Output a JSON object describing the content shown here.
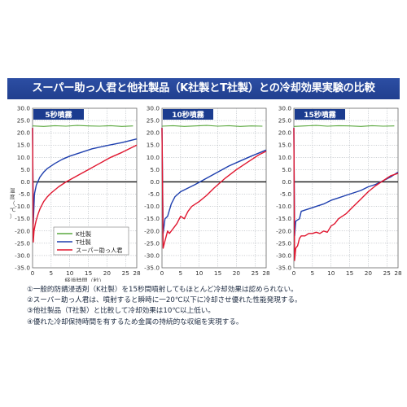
{
  "title": "スーパー助っ人君と他社製品（K社製とT社製）との冷却効果実験の比較",
  "axes": {
    "ylabel": "温度（℃）",
    "xlabel": "経過時間（秒）",
    "y_ticks": [
      "30.0",
      "25.0",
      "20.0",
      "15.0",
      "10.0",
      "5.0",
      "0.0",
      "-5.0",
      "-10.0",
      "-15.0",
      "-20.0",
      "-25.0",
      "-30.0",
      "-35.0"
    ],
    "x_ticks": [
      "0",
      "5",
      "10",
      "15",
      "20",
      "25",
      "28"
    ]
  },
  "legend": {
    "k": "K社製",
    "t": "T社製",
    "s": "スーパー助っ人君"
  },
  "colors": {
    "k": "#5aa83e",
    "t": "#1e3fae",
    "s": "#e0162f",
    "tab": "#1b3c8f",
    "zero": "#111111"
  },
  "chart_data": [
    {
      "type": "line",
      "title": "5秒噴霧",
      "ylim": [
        -35,
        30
      ],
      "xlim": [
        0,
        28
      ],
      "series": [
        {
          "key": "k",
          "name": "K社製",
          "x": [
            0,
            3,
            6,
            9,
            12,
            15,
            18,
            21,
            24,
            27
          ],
          "y": [
            22.8,
            22.6,
            22.9,
            22.7,
            23.0,
            22.8,
            22.7,
            22.9,
            22.6,
            22.8
          ]
        },
        {
          "key": "t",
          "name": "T社製",
          "x": [
            0,
            0.2,
            0.5,
            1,
            2,
            3,
            4,
            6,
            8,
            10,
            13,
            16,
            20,
            24,
            28
          ],
          "y": [
            22,
            -17,
            -5,
            -1.3,
            2,
            4,
            5.5,
            7.5,
            9.2,
            10.5,
            12,
            13.5,
            14.8,
            16,
            17.5
          ]
        },
        {
          "key": "s",
          "name": "スーパー助っ人君",
          "x": [
            0,
            0.2,
            0.4,
            0.7,
            1,
            1.5,
            2,
            3,
            4,
            5,
            7,
            9,
            12,
            15,
            18,
            21,
            24,
            28
          ],
          "y": [
            22,
            -24.5,
            -20,
            -17.5,
            -15.5,
            -13,
            -11,
            -8,
            -6,
            -4.5,
            -2,
            0,
            2.5,
            5,
            7.5,
            10,
            12,
            15
          ]
        }
      ]
    },
    {
      "type": "line",
      "title": "10秒噴霧",
      "ylim": [
        -35,
        30
      ],
      "xlim": [
        0,
        28
      ],
      "series": [
        {
          "key": "k",
          "name": "K社製",
          "x": [
            0,
            3,
            6,
            9,
            12,
            15,
            18,
            21,
            24,
            27
          ],
          "y": [
            22.7,
            22.9,
            22.6,
            22.8,
            23.0,
            22.7,
            22.9,
            22.6,
            22.8,
            22.7
          ]
        },
        {
          "key": "t",
          "name": "T社製",
          "x": [
            0,
            0.3,
            0.8,
            1.5,
            2.5,
            3.5,
            5,
            7,
            9,
            12,
            15,
            18,
            21,
            24,
            28
          ],
          "y": [
            22,
            -21,
            -15,
            -14,
            -9,
            -6,
            -4,
            -2.5,
            -1,
            1.5,
            4,
            6.5,
            8.5,
            10.5,
            13
          ]
        },
        {
          "key": "s",
          "name": "スーパー助っ人君",
          "x": [
            0,
            0.3,
            0.8,
            1.5,
            2,
            3,
            4,
            5,
            6,
            7,
            8,
            10,
            12,
            14,
            17,
            20,
            23,
            26,
            28
          ],
          "y": [
            22,
            -27,
            -24,
            -20,
            -21,
            -19,
            -17,
            -14,
            -15,
            -12,
            -10,
            -8,
            -5.5,
            -2.5,
            1.5,
            5,
            8,
            11,
            12.5
          ]
        }
      ]
    },
    {
      "type": "line",
      "title": "15秒噴霧",
      "ylim": [
        -35,
        30
      ],
      "xlim": [
        0,
        28
      ],
      "series": [
        {
          "key": "k",
          "name": "K社製",
          "x": [
            0,
            3,
            6,
            9,
            12,
            15,
            18,
            21,
            24,
            27
          ],
          "y": [
            22.6,
            22.8,
            23.0,
            22.7,
            22.9,
            22.8,
            22.6,
            22.9,
            22.7,
            22.8
          ]
        },
        {
          "key": "t",
          "name": "T社製",
          "x": [
            0,
            0.2,
            0.5,
            1,
            1.5,
            2,
            3,
            4,
            5,
            6,
            8,
            10,
            12,
            14,
            16,
            18,
            20,
            22,
            24,
            26,
            28
          ],
          "y": [
            22,
            -22,
            -16,
            -15.5,
            -15,
            -12,
            -11.5,
            -11,
            -10.5,
            -10,
            -9,
            -7.5,
            -6.5,
            -5.5,
            -4.5,
            -3.5,
            -2,
            -1,
            0.5,
            2,
            4
          ]
        },
        {
          "key": "s",
          "name": "スーパー助っ人君",
          "x": [
            0,
            0.2,
            0.5,
            1,
            1.5,
            2,
            3,
            4,
            5,
            6,
            7,
            8,
            9,
            10,
            11,
            12,
            14,
            16,
            18,
            20,
            22,
            24,
            26,
            28
          ],
          "y": [
            22,
            -32,
            -27,
            -26,
            -23,
            -22,
            -22,
            -21,
            -21,
            -20.5,
            -21,
            -20,
            -20.5,
            -18,
            -17,
            -15,
            -13,
            -10,
            -7,
            -4,
            -1.5,
            0.5,
            2.5,
            3.5
          ]
        }
      ]
    }
  ],
  "notes": [
    "①一般的防錆浸透剤（K社製）を15秒間噴射してもほとんど冷却効果は認められない。",
    "②スーパー助っ人君は、噴射すると瞬時に一20℃以下に冷却させ優れた性能発現する。",
    "③他社製品（T社製）と比較して冷却効果は10℃以上低い。",
    "④優れた冷却保持時間を有するため金属の持続的な収縮を実現する。"
  ]
}
